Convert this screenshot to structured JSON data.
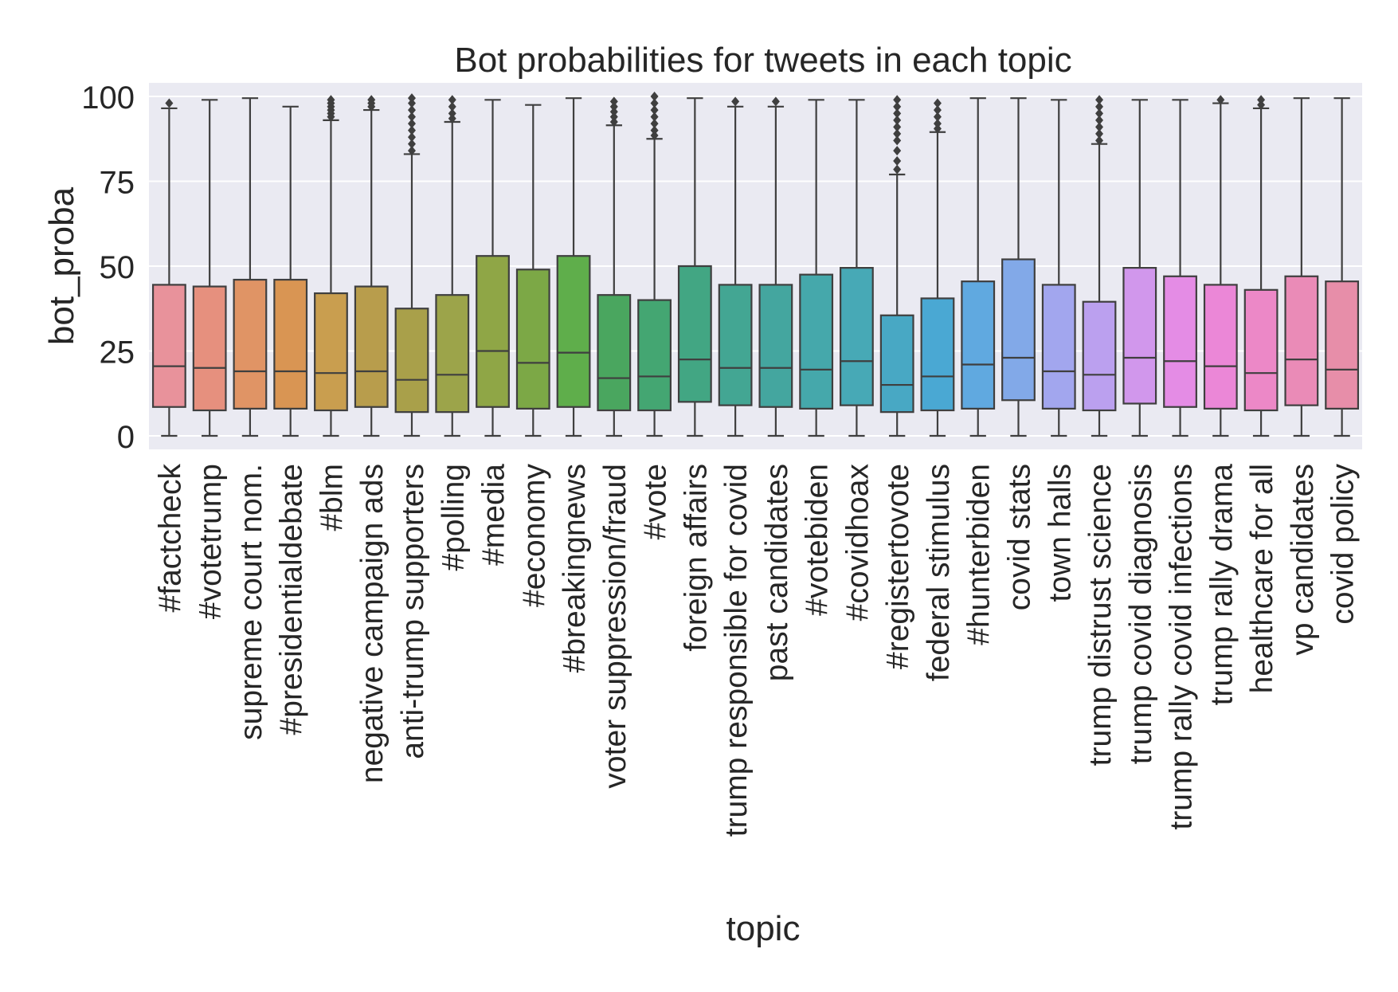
{
  "chart_data": {
    "type": "box",
    "title": "Bot probabilities for tweets in each topic",
    "xlabel": "topic",
    "ylabel": "bot_proba",
    "ylim": [
      -4,
      104
    ],
    "yticks": [
      0,
      25,
      50,
      75,
      100
    ],
    "grid": true,
    "legend": "none",
    "categories": [
      "#factcheck",
      "#votetrump",
      "supreme court nom.",
      "#presidentialdebate",
      "#blm",
      "negative campaign ads",
      "anti-trump supporters",
      "#polling",
      "#media",
      "#economy",
      "#breakingnews",
      "voter suppression/fraud",
      "#vote",
      "foreign affairs",
      "trump responsible for covid",
      "past candidates",
      "#votebiden",
      "#covidhoax",
      "#registertovote",
      "federal stimulus",
      "#hunterbiden",
      "covid stats",
      "town halls",
      "trump distrust science",
      "trump covid diagnosis",
      "trump rally covid infections",
      "trump rally drama",
      "healthcare for all",
      "vp candidates",
      "covid policy"
    ],
    "colors": [
      "#e8929b",
      "#e6907e",
      "#e09465",
      "#d99553",
      "#c99e4f",
      "#b89d4c",
      "#a9a04a",
      "#9ca44a",
      "#8fa646",
      "#7ca846",
      "#5fae4b",
      "#4aa65f",
      "#44a672",
      "#42a683",
      "#43a693",
      "#44a69f",
      "#45a8ab",
      "#47a9b6",
      "#48a8c4",
      "#4aa8d3",
      "#60a9e0",
      "#82a9e8",
      "#a2a6ee",
      "#bba0ef",
      "#d197ec",
      "#e48ce5",
      "#eb87d7",
      "#ec88c7",
      "#ea8bb7",
      "#e78ea9"
    ],
    "boxes": [
      {
        "q1": 8.5,
        "median": 20.5,
        "q3": 44.5,
        "whisker_low": 0,
        "whisker_high": 96.5,
        "outliers": [
          98
        ]
      },
      {
        "q1": 7.5,
        "median": 20,
        "q3": 44,
        "whisker_low": 0,
        "whisker_high": 99,
        "outliers": []
      },
      {
        "q1": 8,
        "median": 19,
        "q3": 46,
        "whisker_low": 0,
        "whisker_high": 99.5,
        "outliers": []
      },
      {
        "q1": 8,
        "median": 19,
        "q3": 46,
        "whisker_low": 0,
        "whisker_high": 97,
        "outliers": []
      },
      {
        "q1": 7.5,
        "median": 18.5,
        "q3": 42,
        "whisker_low": 0,
        "whisker_high": 93,
        "outliers": [
          94,
          95,
          96,
          97,
          98,
          99
        ]
      },
      {
        "q1": 8.5,
        "median": 19,
        "q3": 44,
        "whisker_low": 0,
        "whisker_high": 96,
        "outliers": [
          97,
          98,
          99
        ]
      },
      {
        "q1": 7,
        "median": 16.5,
        "q3": 37.5,
        "whisker_low": 0,
        "whisker_high": 83,
        "outliers": [
          84,
          86,
          88,
          90,
          92,
          94,
          96,
          98,
          99.5
        ]
      },
      {
        "q1": 7,
        "median": 18,
        "q3": 41.5,
        "whisker_low": 0,
        "whisker_high": 92.5,
        "outliers": [
          93.5,
          95,
          97,
          99
        ]
      },
      {
        "q1": 8.5,
        "median": 25,
        "q3": 53,
        "whisker_low": 0,
        "whisker_high": 99,
        "outliers": []
      },
      {
        "q1": 8,
        "median": 21.5,
        "q3": 49,
        "whisker_low": 0,
        "whisker_high": 97.5,
        "outliers": []
      },
      {
        "q1": 8.5,
        "median": 24.5,
        "q3": 53,
        "whisker_low": 0,
        "whisker_high": 99.5,
        "outliers": []
      },
      {
        "q1": 7.5,
        "median": 17,
        "q3": 41.5,
        "whisker_low": 0,
        "whisker_high": 91.5,
        "outliers": [
          92.5,
          94,
          95.5,
          97,
          98.5
        ]
      },
      {
        "q1": 7.5,
        "median": 17.5,
        "q3": 40,
        "whisker_low": 0,
        "whisker_high": 87.5,
        "outliers": [
          88.5,
          90,
          92,
          94,
          96,
          98,
          100
        ]
      },
      {
        "q1": 10,
        "median": 22.5,
        "q3": 50,
        "whisker_low": 0,
        "whisker_high": 99.5,
        "outliers": []
      },
      {
        "q1": 9,
        "median": 20,
        "q3": 44.5,
        "whisker_low": 0,
        "whisker_high": 97,
        "outliers": [
          98.5
        ]
      },
      {
        "q1": 8.5,
        "median": 20,
        "q3": 44.5,
        "whisker_low": 0,
        "whisker_high": 97,
        "outliers": [
          98.5
        ]
      },
      {
        "q1": 8,
        "median": 19.5,
        "q3": 47.5,
        "whisker_low": 0,
        "whisker_high": 99,
        "outliers": []
      },
      {
        "q1": 9,
        "median": 22,
        "q3": 49.5,
        "whisker_low": 0,
        "whisker_high": 99,
        "outliers": []
      },
      {
        "q1": 7,
        "median": 15,
        "q3": 35.5,
        "whisker_low": 0,
        "whisker_high": 77,
        "outliers": [
          78.5,
          81,
          84,
          87,
          89,
          91,
          93,
          95,
          97,
          99
        ]
      },
      {
        "q1": 7.5,
        "median": 17.5,
        "q3": 40.5,
        "whisker_low": 0,
        "whisker_high": 89.5,
        "outliers": [
          90.5,
          92,
          94,
          96,
          98
        ]
      },
      {
        "q1": 8,
        "median": 21,
        "q3": 45.5,
        "whisker_low": 0,
        "whisker_high": 99.5,
        "outliers": []
      },
      {
        "q1": 10.5,
        "median": 23,
        "q3": 52,
        "whisker_low": 0,
        "whisker_high": 99.5,
        "outliers": []
      },
      {
        "q1": 8,
        "median": 19,
        "q3": 44.5,
        "whisker_low": 0,
        "whisker_high": 99,
        "outliers": []
      },
      {
        "q1": 7.5,
        "median": 18,
        "q3": 39.5,
        "whisker_low": 0,
        "whisker_high": 86,
        "outliers": [
          87,
          89,
          91,
          93,
          95,
          97,
          99
        ]
      },
      {
        "q1": 9.5,
        "median": 23,
        "q3": 49.5,
        "whisker_low": 0,
        "whisker_high": 99,
        "outliers": []
      },
      {
        "q1": 8.5,
        "median": 22,
        "q3": 47,
        "whisker_low": 0,
        "whisker_high": 99,
        "outliers": []
      },
      {
        "q1": 8,
        "median": 20.5,
        "q3": 44.5,
        "whisker_low": 0,
        "whisker_high": 98,
        "outliers": [
          99
        ]
      },
      {
        "q1": 7.5,
        "median": 18.5,
        "q3": 43,
        "whisker_low": 0,
        "whisker_high": 96.5,
        "outliers": [
          97.5,
          99
        ]
      },
      {
        "q1": 9,
        "median": 22.5,
        "q3": 47,
        "whisker_low": 0,
        "whisker_high": 99.5,
        "outliers": []
      },
      {
        "q1": 8,
        "median": 19.5,
        "q3": 45.5,
        "whisker_low": 0,
        "whisker_high": 99.5,
        "outliers": []
      }
    ]
  }
}
